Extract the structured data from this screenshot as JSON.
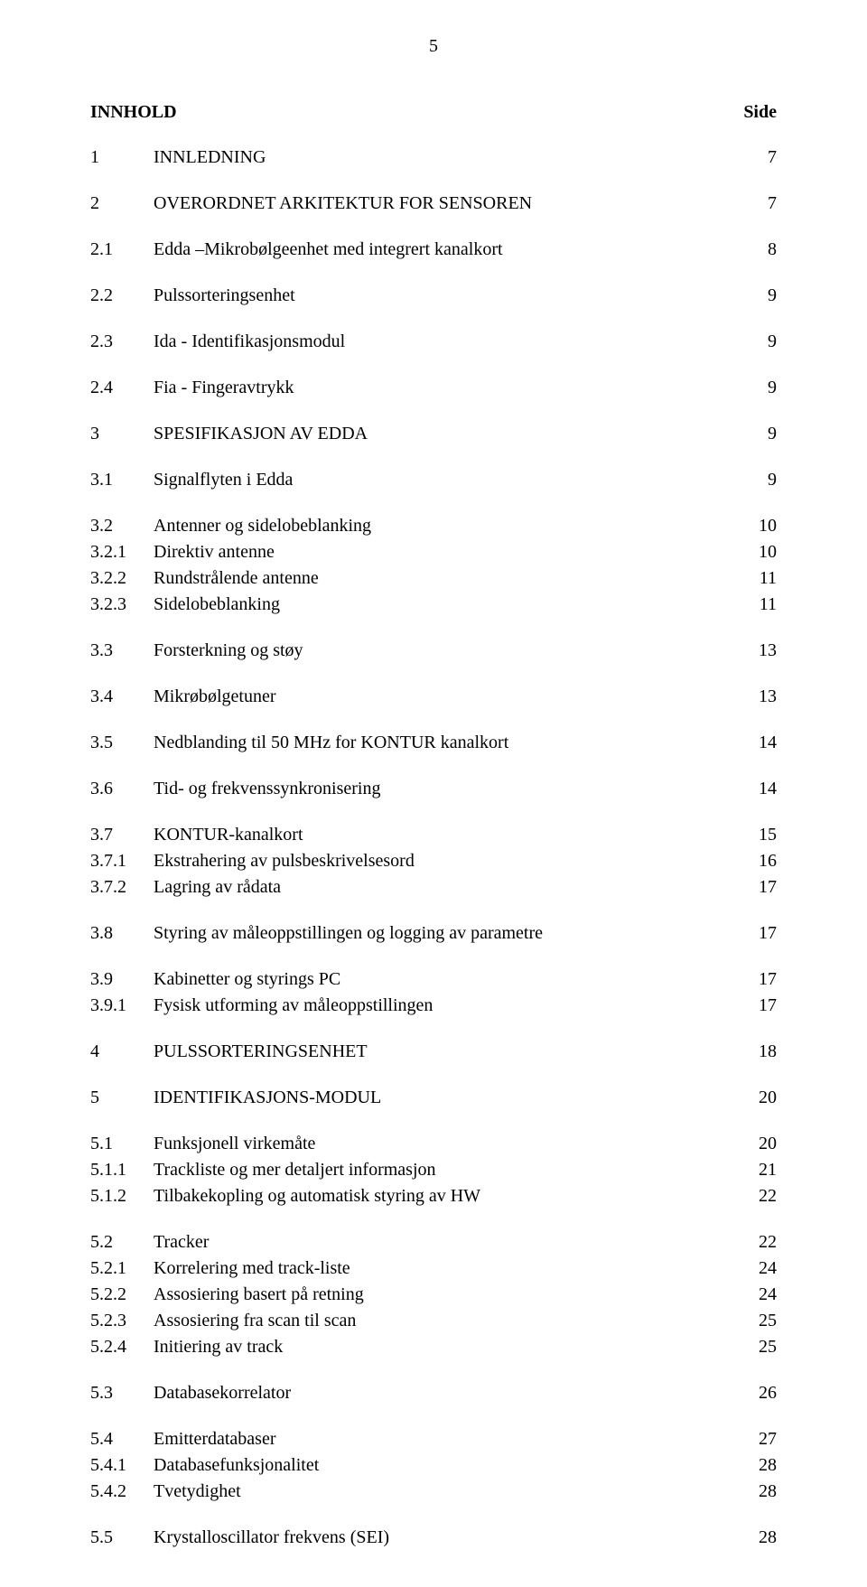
{
  "page_number": "5",
  "heading": "INNHOLD",
  "side_label": "Side",
  "font": {
    "family": "Times New Roman",
    "body_size_pt": 20,
    "color": "#000000",
    "background": "#ffffff"
  },
  "toc": {
    "r1": {
      "num": "1",
      "text": "INNLEDNING",
      "page": "7"
    },
    "r2": {
      "num": "2",
      "text": "OVERORDNET ARKITEKTUR FOR SENSOREN",
      "page": "7"
    },
    "r3": {
      "num": "2.1",
      "text": "Edda –Mikrobølgeenhet med integrert kanalkort",
      "page": "8"
    },
    "r4": {
      "num": "2.2",
      "text": "Pulssorteringsenhet",
      "page": "9"
    },
    "r5": {
      "num": "2.3",
      "text": "Ida  -  Identifikasjonsmodul",
      "page": "9"
    },
    "r6": {
      "num": "2.4",
      "text": "Fia - Fingeravtrykk",
      "page": "9"
    },
    "r7": {
      "num": "3",
      "text": "SPESIFIKASJON AV EDDA",
      "page": "9"
    },
    "r8": {
      "num": "3.1",
      "text": "Signalflyten i Edda",
      "page": "9"
    },
    "r9": {
      "num": "3.2",
      "text": "Antenner  og sidelobeblanking",
      "page": "10"
    },
    "r10": {
      "num": "3.2.1",
      "text": "Direktiv antenne",
      "page": "10"
    },
    "r11": {
      "num": "3.2.2",
      "text": "Rundstrålende antenne",
      "page": "11"
    },
    "r12": {
      "num": "3.2.3",
      "text": "Sidelobeblanking",
      "page": "11"
    },
    "r13": {
      "num": "3.3",
      "text": "Forsterkning og støy",
      "page": "13"
    },
    "r14": {
      "num": "3.4",
      "text": "Mikrøbølgetuner",
      "page": "13"
    },
    "r15": {
      "num": "3.5",
      "text": "Nedblanding til 50 MHz for KONTUR kanalkort",
      "page": "14"
    },
    "r16": {
      "num": "3.6",
      "text": "Tid- og frekvenssynkronisering",
      "page": "14"
    },
    "r17": {
      "num": "3.7",
      "text": "KONTUR-kanalkort",
      "page": "15"
    },
    "r18": {
      "num": "3.7.1",
      "text": "Ekstrahering av pulsbeskrivelsesord",
      "page": "16"
    },
    "r19": {
      "num": "3.7.2",
      "text": "Lagring av rådata",
      "page": "17"
    },
    "r20": {
      "num": "3.8",
      "text": "Styring av måleoppstillingen og logging av parametre",
      "page": "17"
    },
    "r21": {
      "num": "3.9",
      "text": "Kabinetter og styrings PC",
      "page": "17"
    },
    "r22": {
      "num": "3.9.1",
      "text": "Fysisk utforming av måleoppstillingen",
      "page": "17"
    },
    "r23": {
      "num": "4",
      "text": "PULSSORTERINGSENHET",
      "page": "18"
    },
    "r24": {
      "num": "5",
      "text": "IDENTIFIKASJONS-MODUL",
      "page": "20"
    },
    "r25": {
      "num": "5.1",
      "text": "Funksjonell virkemåte",
      "page": "20"
    },
    "r26": {
      "num": "5.1.1",
      "text": "Trackliste og mer detaljert informasjon",
      "page": "21"
    },
    "r27": {
      "num": "5.1.2",
      "text": "Tilbakekopling og automatisk styring av HW",
      "page": "22"
    },
    "r28": {
      "num": "5.2",
      "text": "Tracker",
      "page": "22"
    },
    "r29": {
      "num": "5.2.1",
      "text": "Korrelering med track-liste",
      "page": "24"
    },
    "r30": {
      "num": "5.2.2",
      "text": "Assosiering basert på retning",
      "page": "24"
    },
    "r31": {
      "num": "5.2.3",
      "text": "Assosiering fra scan til scan",
      "page": "25"
    },
    "r32": {
      "num": "5.2.4",
      "text": "Initiering av track",
      "page": "25"
    },
    "r33": {
      "num": "5.3",
      "text": "Databasekorrelator",
      "page": "26"
    },
    "r34": {
      "num": "5.4",
      "text": "Emitterdatabaser",
      "page": "27"
    },
    "r35": {
      "num": "5.4.1",
      "text": "Databasefunksjonalitet",
      "page": "28"
    },
    "r36": {
      "num": "5.4.2",
      "text": "Tvetydighet",
      "page": "28"
    },
    "r37": {
      "num": "5.5",
      "text": "Krystalloscillator frekvens (SEI)",
      "page": "28"
    }
  }
}
